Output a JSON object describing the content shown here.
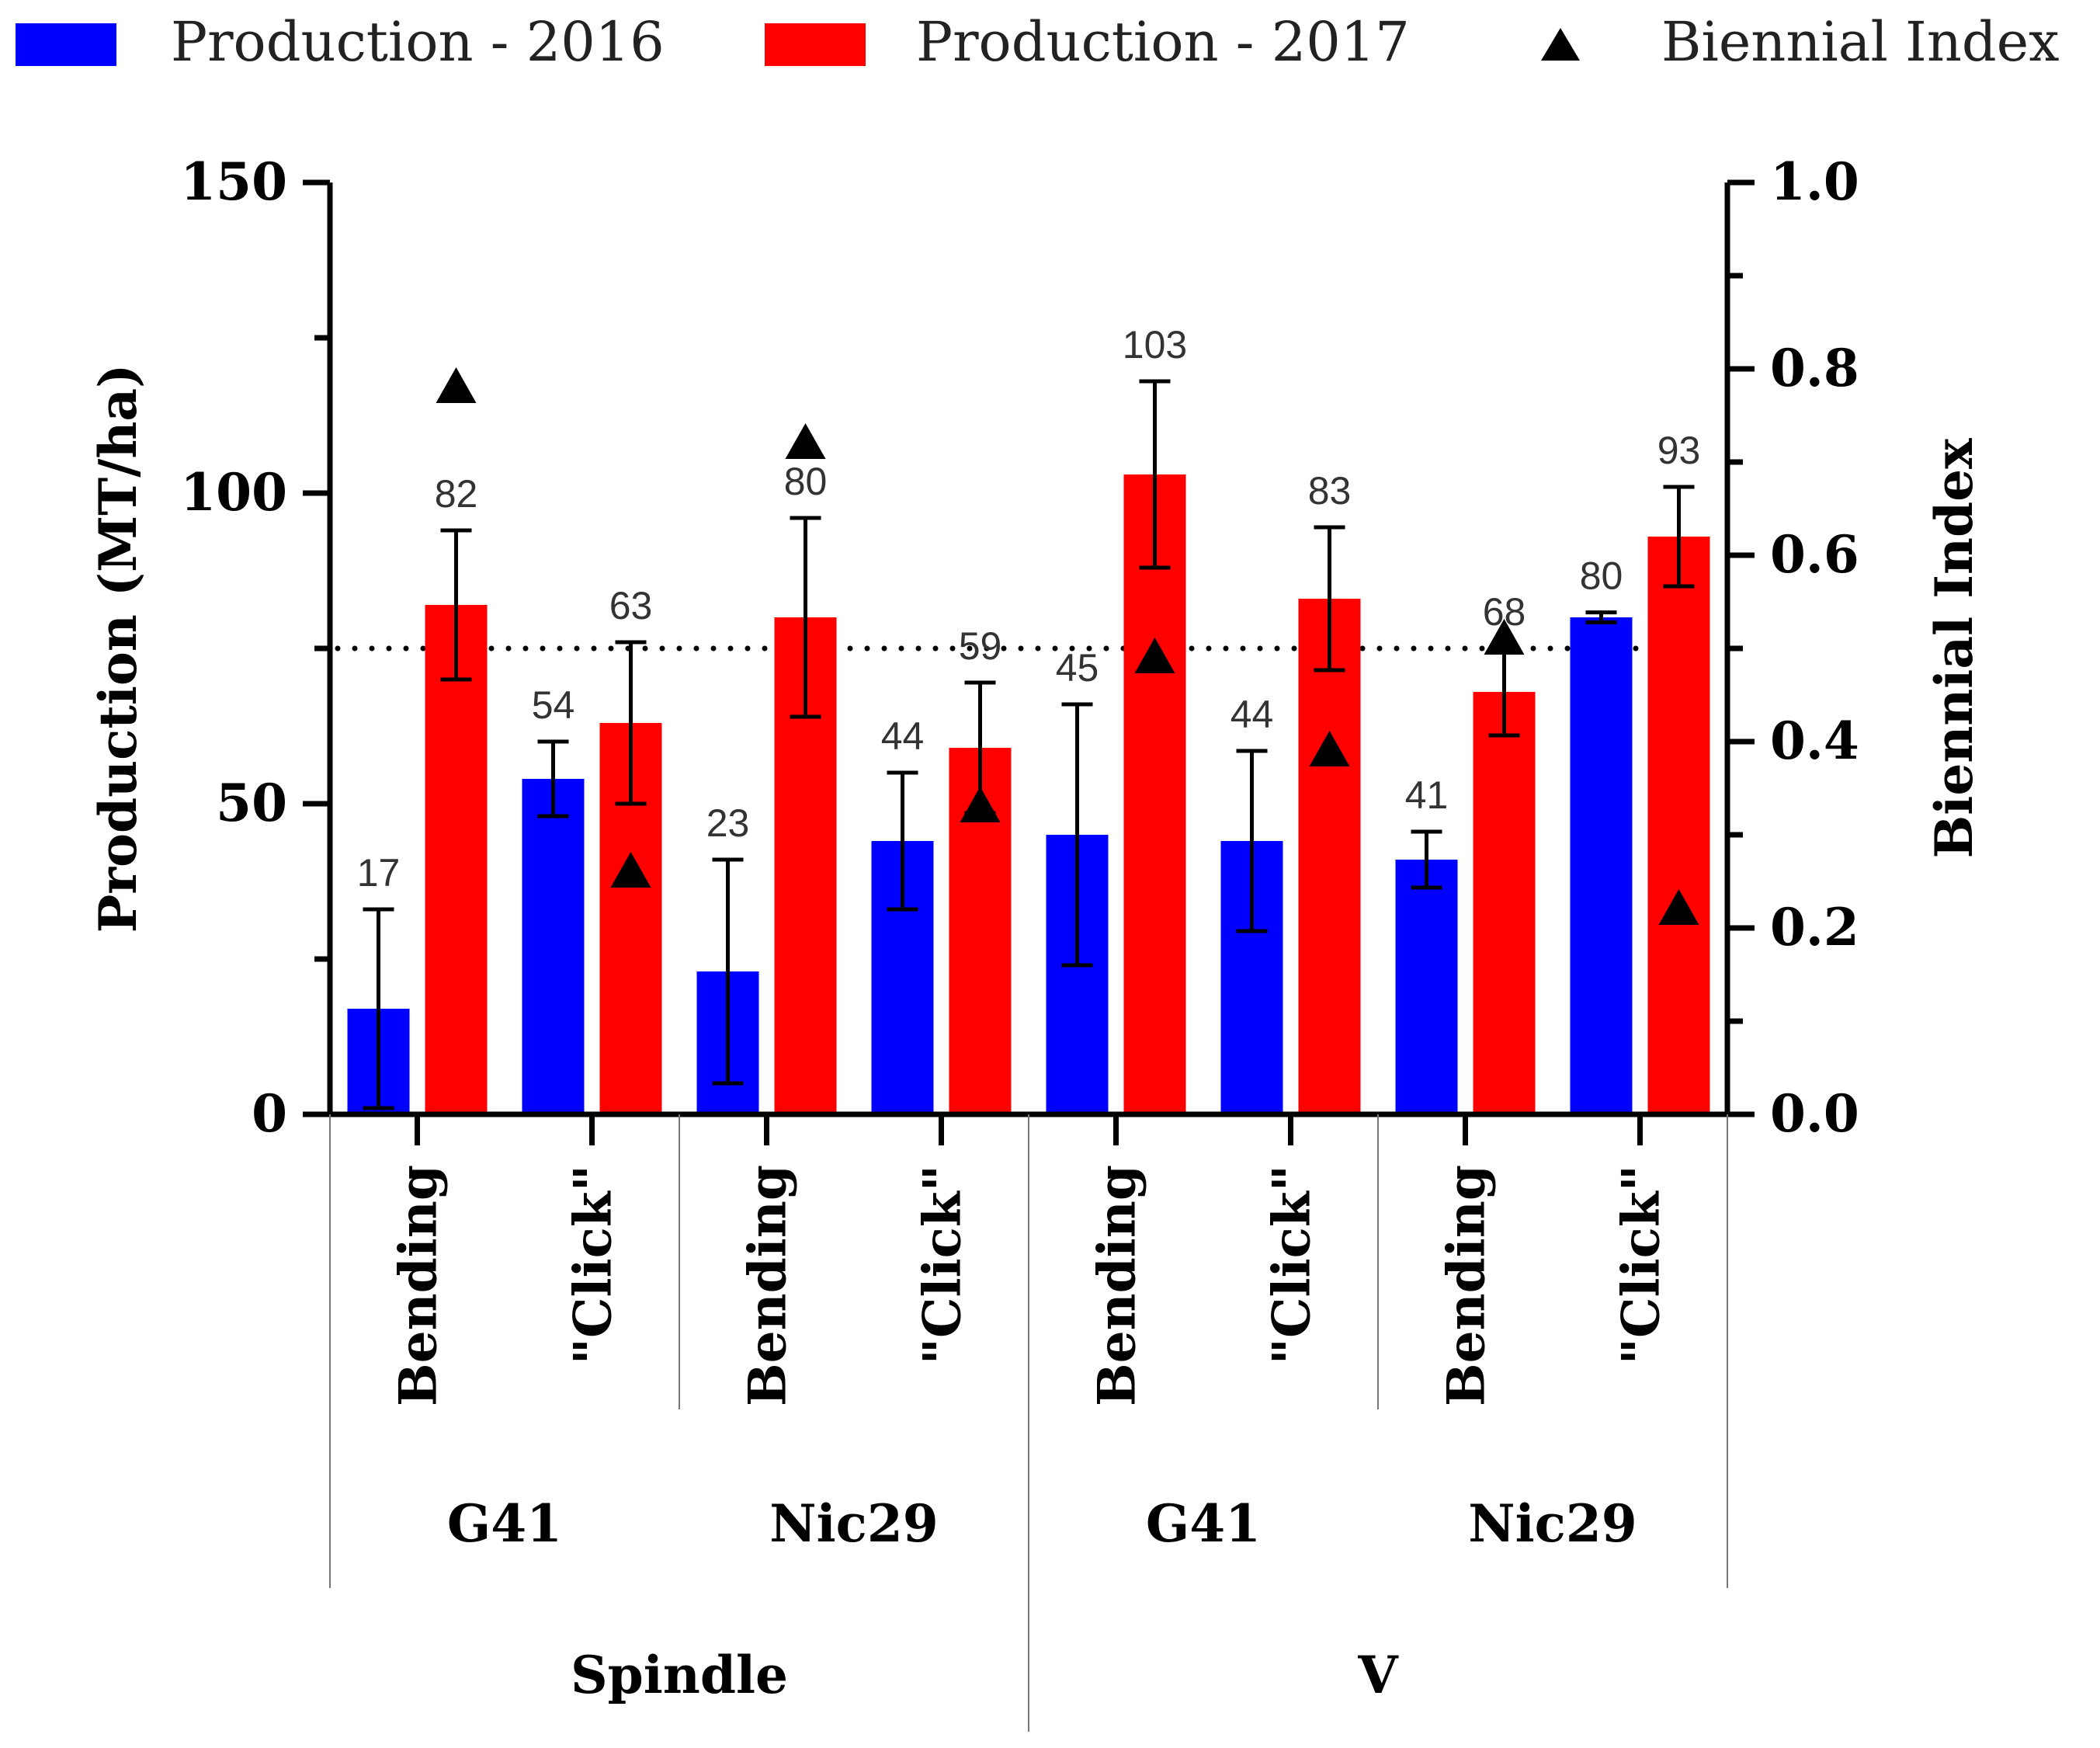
{
  "chart_data": {
    "type": "bar",
    "legend": {
      "placement": "top",
      "items": [
        {
          "label": "Production - 2016",
          "color": "#0000ff",
          "marker": "square"
        },
        {
          "label": "Production - 2017",
          "color": "#ff0000",
          "marker": "square"
        },
        {
          "label": "Biennial Index",
          "color": "#000000",
          "marker": "triangle"
        }
      ]
    },
    "y_left": {
      "label": "Production (MT/ha)",
      "min": 0,
      "max": 150,
      "ticks": [
        "0",
        "50",
        "100",
        "150"
      ],
      "minor_step": 25
    },
    "y_right": {
      "label": "Biennial Index",
      "min": 0,
      "max": 1,
      "ticks": [
        "0.0",
        "0.2",
        "0.4",
        "0.6",
        "0.8",
        "1.0"
      ],
      "minor_step": 0.1
    },
    "categories": [
      {
        "label": "Bending",
        "rootstock": "G41",
        "system": "Spindle"
      },
      {
        "label": "\"Click\"",
        "rootstock": "G41",
        "system": "Spindle"
      },
      {
        "label": "Bending",
        "rootstock": "Nic29",
        "system": "Spindle"
      },
      {
        "label": "\"Click\"",
        "rootstock": "Nic29",
        "system": "Spindle"
      },
      {
        "label": "Bending",
        "rootstock": "G41",
        "system": "V"
      },
      {
        "label": "\"Click\"",
        "rootstock": "G41",
        "system": "V"
      },
      {
        "label": "Bending",
        "rootstock": "Nic29",
        "system": "V"
      },
      {
        "label": "\"Click\"",
        "rootstock": "Nic29",
        "system": "V"
      }
    ],
    "rootstock_groups": [
      "G41",
      "Nic29",
      "G41",
      "Nic29"
    ],
    "system_groups": [
      "Spindle",
      "V"
    ],
    "series": [
      {
        "name": "Production - 2016",
        "color": "#0000ff",
        "values": [
          17,
          54,
          23,
          44,
          45,
          44,
          41,
          80
        ],
        "value_labels": [
          "17",
          "54",
          "23",
          "44",
          "45",
          "44",
          "41",
          "80"
        ],
        "error": [
          16,
          6,
          18,
          11,
          21,
          14.5,
          4.5,
          0.8
        ]
      },
      {
        "name": "Production - 2017",
        "color": "#ff0000",
        "values": [
          82,
          63,
          80,
          59,
          103,
          83,
          68,
          93
        ],
        "value_labels": [
          "82",
          "63",
          "80",
          "59",
          "103",
          "83",
          "68",
          "93"
        ],
        "error": [
          12,
          13,
          16,
          10.5,
          15,
          11.5,
          7,
          8
        ]
      }
    ],
    "biennial_index": [
      0.78,
      0.26,
      0.72,
      0.33,
      0.49,
      0.39,
      0.51,
      0.22
    ],
    "reference_line": {
      "axis": "right",
      "value": 0.5,
      "style": "dotted"
    }
  }
}
